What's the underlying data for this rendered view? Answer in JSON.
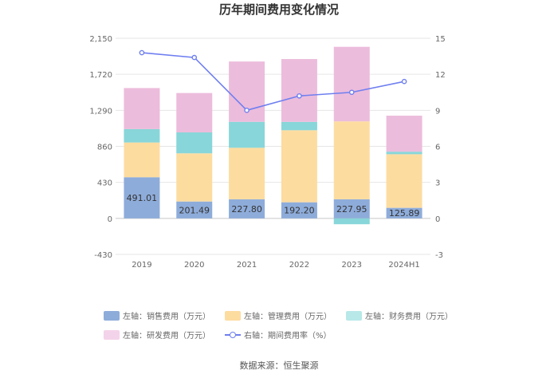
{
  "chart_data": {
    "type": "bar",
    "title": "历年期间费用变化情况",
    "categories": [
      "2019",
      "2020",
      "2021",
      "2022",
      "2023",
      "2024H1"
    ],
    "left_axis": {
      "ticks": [
        "2,150",
        "1,720",
        "1,290",
        "860",
        "430",
        "0",
        "-430"
      ],
      "range": [
        -430,
        2150
      ]
    },
    "right_axis": {
      "ticks": [
        "15",
        "12",
        "9",
        "6",
        "3",
        "0",
        "-3"
      ],
      "range": [
        -3,
        15
      ]
    },
    "series": [
      {
        "name": "左轴：销售费用（万元）",
        "color": "#8eacda",
        "values": [
          491.01,
          201.49,
          227.8,
          192.2,
          227.95,
          125.89
        ],
        "labels": [
          "491.01",
          "201.49",
          "227.80",
          "192.20",
          "227.95",
          "125.89"
        ]
      },
      {
        "name": "左轴：管理费用（万元）",
        "color": "#fddca0",
        "values": [
          415,
          575,
          615,
          860,
          930,
          640
        ]
      },
      {
        "name": "左轴：财务费用（万元）",
        "color": "#88d6d9",
        "values": [
          160,
          250,
          310,
          100,
          -70,
          30
        ]
      },
      {
        "name": "左轴：研发费用（万元）",
        "color": "#ecbcdc",
        "values": [
          490,
          470,
          720,
          750,
          890,
          430
        ]
      }
    ],
    "line_series": {
      "name": "右轴：期间费用率（%）",
      "color": "#6f7ff0",
      "values": [
        13.8,
        13.4,
        9.0,
        10.2,
        10.5,
        11.4
      ]
    }
  },
  "legend": {
    "items": [
      {
        "label": "左轴：销售费用（万元）",
        "color": "#8eacda"
      },
      {
        "label": "左轴：管理费用（万元）",
        "color": "#fddca0"
      },
      {
        "label": "左轴：财务费用（万元）",
        "color": "#b8e8e8"
      },
      {
        "label": "左轴：研发费用（万元）",
        "color": "#f3d3ea"
      },
      {
        "label": "右轴：期间费用率（%）",
        "color": "#6f7ff0"
      }
    ]
  },
  "source": "数据来源：恒生聚源"
}
